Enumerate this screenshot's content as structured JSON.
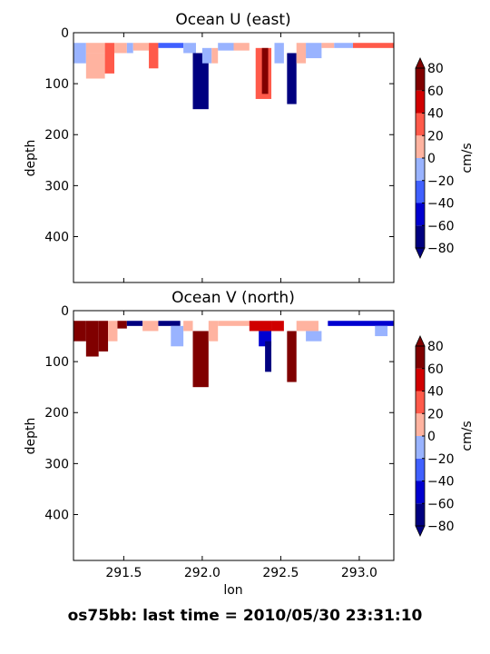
{
  "footer_text": "os75bb: last time = 2010/05/30 23:31:10",
  "colors": {
    "levels": [
      "#000080",
      "#0000d0",
      "#4060ff",
      "#99b3ff",
      "#ffb3a0",
      "#ff5a4a",
      "#d00000",
      "#800000"
    ],
    "under": "#000080",
    "over": "#800000"
  },
  "chart_data": [
    {
      "type": "heatmap",
      "title": "Ocean U (east)",
      "xlabel": "",
      "ylabel": "depth",
      "xlim": [
        291.18,
        293.22
      ],
      "ylim": [
        490,
        0
      ],
      "y_inverted": true,
      "grid": false,
      "xticks": [
        "291.5",
        "292.0",
        "292.5",
        "293.0"
      ],
      "yticks": [
        "0",
        "100",
        "200",
        "300",
        "400"
      ],
      "colorbar": {
        "label": "cm/s",
        "ticks": [
          "80",
          "60",
          "40",
          "20",
          "0",
          "−20",
          "−40",
          "−60",
          "−80"
        ],
        "levels": [
          -80,
          -60,
          -40,
          -20,
          0,
          20,
          40,
          60,
          80
        ]
      },
      "cells": [
        {
          "x": [
            291.18,
            291.26
          ],
          "y": [
            20,
            60
          ],
          "v": -10
        },
        {
          "x": [
            291.26,
            291.38
          ],
          "y": [
            20,
            40
          ],
          "v": 10
        },
        {
          "x": [
            291.26,
            291.38
          ],
          "y": [
            40,
            90
          ],
          "v": 10
        },
        {
          "x": [
            291.38,
            291.44
          ],
          "y": [
            20,
            80
          ],
          "v": 30
        },
        {
          "x": [
            291.44,
            291.52
          ],
          "y": [
            20,
            40
          ],
          "v": 10
        },
        {
          "x": [
            291.52,
            291.56
          ],
          "y": [
            20,
            40
          ],
          "v": -10
        },
        {
          "x": [
            291.56,
            291.66
          ],
          "y": [
            20,
            35
          ],
          "v": 10
        },
        {
          "x": [
            291.66,
            291.72
          ],
          "y": [
            20,
            70
          ],
          "v": 30
        },
        {
          "x": [
            291.72,
            291.88
          ],
          "y": [
            20,
            30
          ],
          "v": -30
        },
        {
          "x": [
            291.88,
            291.96
          ],
          "y": [
            20,
            40
          ],
          "v": -10
        },
        {
          "x": [
            291.94,
            292.04
          ],
          "y": [
            40,
            150
          ],
          "v": -75
        },
        {
          "x": [
            292.0,
            292.06
          ],
          "y": [
            30,
            60
          ],
          "v": -10
        },
        {
          "x": [
            292.06,
            292.1
          ],
          "y": [
            30,
            60
          ],
          "v": 10
        },
        {
          "x": [
            292.1,
            292.2
          ],
          "y": [
            20,
            35
          ],
          "v": -10
        },
        {
          "x": [
            292.2,
            292.3
          ],
          "y": [
            20,
            35
          ],
          "v": 10
        },
        {
          "x": [
            292.34,
            292.44
          ],
          "y": [
            30,
            130
          ],
          "v": 30
        },
        {
          "x": [
            292.38,
            292.42
          ],
          "y": [
            30,
            120
          ],
          "v": 70
        },
        {
          "x": [
            292.46,
            292.52
          ],
          "y": [
            20,
            60
          ],
          "v": -10
        },
        {
          "x": [
            292.54,
            292.6
          ],
          "y": [
            40,
            140
          ],
          "v": -75
        },
        {
          "x": [
            292.6,
            292.66
          ],
          "y": [
            20,
            60
          ],
          "v": 10
        },
        {
          "x": [
            292.66,
            292.76
          ],
          "y": [
            20,
            50
          ],
          "v": -10
        },
        {
          "x": [
            292.76,
            292.84
          ],
          "y": [
            20,
            30
          ],
          "v": 10
        },
        {
          "x": [
            292.84,
            292.96
          ],
          "y": [
            20,
            30
          ],
          "v": -10
        },
        {
          "x": [
            292.96,
            293.22
          ],
          "y": [
            20,
            30
          ],
          "v": 30
        }
      ]
    },
    {
      "type": "heatmap",
      "title": "Ocean V (north)",
      "xlabel": "lon",
      "ylabel": "depth",
      "xlim": [
        291.18,
        293.22
      ],
      "ylim": [
        490,
        0
      ],
      "y_inverted": true,
      "grid": false,
      "xticks": [
        "291.5",
        "292.0",
        "292.5",
        "293.0"
      ],
      "yticks": [
        "0",
        "100",
        "200",
        "300",
        "400"
      ],
      "colorbar": {
        "label": "cm/s",
        "ticks": [
          "80",
          "60",
          "40",
          "20",
          "0",
          "−20",
          "−40",
          "−60",
          "−80"
        ],
        "levels": [
          -80,
          -60,
          -40,
          -20,
          0,
          20,
          40,
          60,
          80
        ]
      },
      "cells": [
        {
          "x": [
            291.18,
            291.26
          ],
          "y": [
            20,
            60
          ],
          "v": 70
        },
        {
          "x": [
            291.26,
            291.34
          ],
          "y": [
            20,
            90
          ],
          "v": 70
        },
        {
          "x": [
            291.34,
            291.4
          ],
          "y": [
            20,
            80
          ],
          "v": 60
        },
        {
          "x": [
            291.4,
            291.46
          ],
          "y": [
            20,
            60
          ],
          "v": 10
        },
        {
          "x": [
            291.46,
            291.52
          ],
          "y": [
            20,
            35
          ],
          "v": 70
        },
        {
          "x": [
            291.52,
            291.62
          ],
          "y": [
            20,
            30
          ],
          "v": -70
        },
        {
          "x": [
            291.62,
            291.72
          ],
          "y": [
            20,
            40
          ],
          "v": 10
        },
        {
          "x": [
            291.72,
            291.86
          ],
          "y": [
            20,
            30
          ],
          "v": -70
        },
        {
          "x": [
            291.8,
            291.88
          ],
          "y": [
            30,
            70
          ],
          "v": -10
        },
        {
          "x": [
            291.88,
            291.94
          ],
          "y": [
            20,
            40
          ],
          "v": 10
        },
        {
          "x": [
            291.94,
            292.04
          ],
          "y": [
            40,
            150
          ],
          "v": 75
        },
        {
          "x": [
            292.04,
            292.1
          ],
          "y": [
            20,
            60
          ],
          "v": 10
        },
        {
          "x": [
            292.1,
            292.3
          ],
          "y": [
            20,
            30
          ],
          "v": 10
        },
        {
          "x": [
            292.3,
            292.44
          ],
          "y": [
            20,
            40
          ],
          "v": 50
        },
        {
          "x": [
            292.36,
            292.44
          ],
          "y": [
            40,
            70
          ],
          "v": -50
        },
        {
          "x": [
            292.4,
            292.44
          ],
          "y": [
            60,
            120
          ],
          "v": -80
        },
        {
          "x": [
            292.44,
            292.52
          ],
          "y": [
            20,
            40
          ],
          "v": 50
        },
        {
          "x": [
            292.54,
            292.6
          ],
          "y": [
            40,
            140
          ],
          "v": 75
        },
        {
          "x": [
            292.6,
            292.74
          ],
          "y": [
            20,
            40
          ],
          "v": 10
        },
        {
          "x": [
            292.66,
            292.76
          ],
          "y": [
            40,
            60
          ],
          "v": -10
        },
        {
          "x": [
            292.8,
            293.22
          ],
          "y": [
            20,
            30
          ],
          "v": -60
        },
        {
          "x": [
            293.1,
            293.18
          ],
          "y": [
            30,
            50
          ],
          "v": -10
        }
      ]
    }
  ]
}
